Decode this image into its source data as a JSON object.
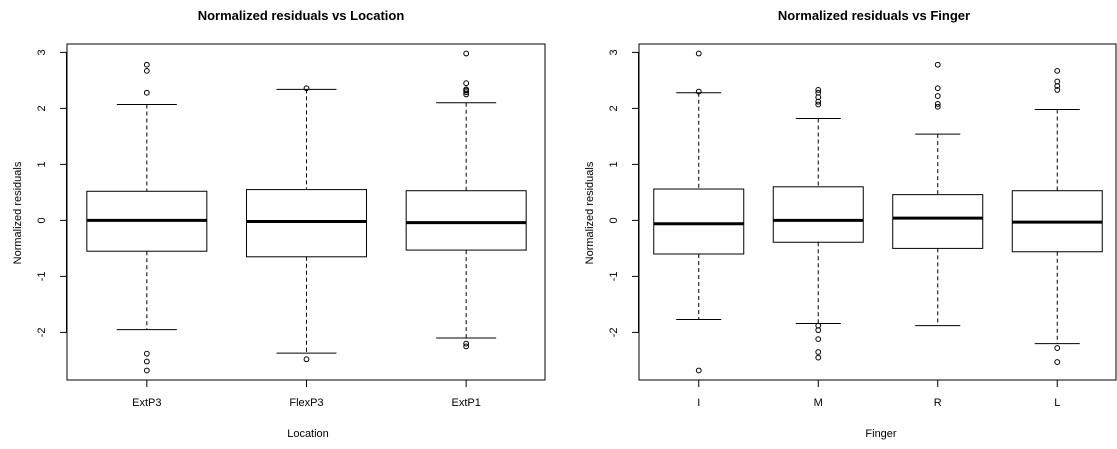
{
  "chart_data": [
    {
      "type": "boxplot",
      "title": "Normalized residuals vs Location",
      "xlabel": "Location",
      "ylabel": "Normalized residuals",
      "ylim": [
        -2.85,
        3.15
      ],
      "yticks": [
        -2,
        -1,
        0,
        1,
        2,
        3
      ],
      "grid": false,
      "categories": [
        "ExtP3",
        "FlexP3",
        "ExtP1"
      ],
      "boxes": [
        {
          "whisker_low": -1.95,
          "q1": -0.55,
          "median": 0.0,
          "q3": 0.52,
          "whisker_high": 2.07,
          "outliers": [
            2.28,
            2.67,
            2.78,
            -2.38,
            -2.52,
            -2.68
          ]
        },
        {
          "whisker_low": -2.37,
          "q1": -0.65,
          "median": -0.02,
          "q3": 0.55,
          "whisker_high": 2.34,
          "outliers": [
            2.36,
            -2.48
          ]
        },
        {
          "whisker_low": -2.1,
          "q1": -0.53,
          "median": -0.04,
          "q3": 0.53,
          "whisker_high": 2.1,
          "outliers": [
            2.25,
            2.29,
            2.32,
            2.34,
            2.45,
            2.98,
            -2.2,
            -2.25
          ]
        }
      ]
    },
    {
      "type": "boxplot",
      "title": "Normalized residuals vs Finger",
      "xlabel": "Finger",
      "ylabel": "Normalized residuals",
      "ylim": [
        -2.85,
        3.15
      ],
      "yticks": [
        -2,
        -1,
        0,
        1,
        2,
        3
      ],
      "grid": false,
      "categories": [
        "I",
        "M",
        "R",
        "L"
      ],
      "boxes": [
        {
          "whisker_low": -1.77,
          "q1": -0.6,
          "median": -0.06,
          "q3": 0.56,
          "whisker_high": 2.28,
          "outliers": [
            2.3,
            2.98,
            -2.68
          ]
        },
        {
          "whisker_low": -1.84,
          "q1": -0.39,
          "median": 0.0,
          "q3": 0.6,
          "whisker_high": 1.82,
          "outliers": [
            2.07,
            2.12,
            2.2,
            2.28,
            2.33,
            -1.88,
            -1.96,
            -2.12,
            -2.35,
            -2.45
          ]
        },
        {
          "whisker_low": -1.88,
          "q1": -0.5,
          "median": 0.04,
          "q3": 0.46,
          "whisker_high": 1.54,
          "outliers": [
            2.03,
            2.08,
            2.22,
            2.36,
            2.78
          ]
        },
        {
          "whisker_low": -2.2,
          "q1": -0.56,
          "median": -0.03,
          "q3": 0.53,
          "whisker_high": 1.98,
          "outliers": [
            2.33,
            2.4,
            2.48,
            2.67,
            -2.28,
            -2.53
          ]
        }
      ]
    }
  ]
}
